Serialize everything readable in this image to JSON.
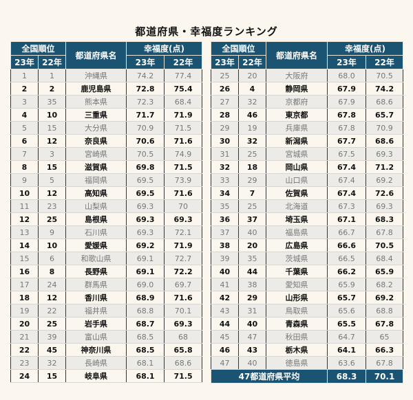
{
  "title": "都道府県・幸福度ランキング",
  "headers": {
    "rank": "全国順位",
    "prefecture": "都道府県名",
    "score": "幸福度(点)",
    "y23": "23年",
    "y22": "22年"
  },
  "rows": [
    [
      "1",
      "1",
      "沖縄県",
      "74.2",
      "77.4"
    ],
    [
      "2",
      "2",
      "鹿児島県",
      "72.8",
      "75.4"
    ],
    [
      "3",
      "35",
      "熊本県",
      "72.3",
      "68.4"
    ],
    [
      "4",
      "10",
      "三重県",
      "71.7",
      "71.9"
    ],
    [
      "5",
      "15",
      "大分県",
      "70.9",
      "71.5"
    ],
    [
      "6",
      "12",
      "奈良県",
      "70.6",
      "71.6"
    ],
    [
      "7",
      "3",
      "宮崎県",
      "70.5",
      "74.9"
    ],
    [
      "8",
      "15",
      "滋賀県",
      "69.8",
      "71.5"
    ],
    [
      "9",
      "5",
      "福岡県",
      "69.5",
      "73.9"
    ],
    [
      "10",
      "12",
      "高知県",
      "69.5",
      "71.6"
    ],
    [
      "11",
      "23",
      "山梨県",
      "69.3",
      "70"
    ],
    [
      "12",
      "25",
      "島根県",
      "69.3",
      "69.3"
    ],
    [
      "13",
      "9",
      "石川県",
      "69.3",
      "72.1"
    ],
    [
      "14",
      "10",
      "愛媛県",
      "69.2",
      "71.9"
    ],
    [
      "15",
      "6",
      "和歌山県",
      "69.1",
      "72.7"
    ],
    [
      "16",
      "8",
      "長野県",
      "69.1",
      "72.2"
    ],
    [
      "17",
      "24",
      "群馬県",
      "69.0",
      "69.7"
    ],
    [
      "18",
      "12",
      "香川県",
      "68.9",
      "71.6"
    ],
    [
      "19",
      "22",
      "福井県",
      "68.8",
      "70.1"
    ],
    [
      "20",
      "25",
      "岩手県",
      "68.7",
      "69.3"
    ],
    [
      "21",
      "39",
      "富山県",
      "68.5",
      "68"
    ],
    [
      "22",
      "45",
      "神奈川県",
      "68.5",
      "65.8"
    ],
    [
      "23",
      "32",
      "長崎県",
      "68.1",
      "68.6"
    ],
    [
      "24",
      "15",
      "岐阜県",
      "68.1",
      "71.5"
    ],
    [
      "25",
      "20",
      "大阪府",
      "68.0",
      "70.5"
    ],
    [
      "26",
      "4",
      "静岡県",
      "67.9",
      "74.2"
    ],
    [
      "27",
      "32",
      "京都府",
      "67.9",
      "68.6"
    ],
    [
      "28",
      "46",
      "東京都",
      "67.8",
      "65.7"
    ],
    [
      "29",
      "19",
      "兵庫県",
      "67.8",
      "70.9"
    ],
    [
      "30",
      "32",
      "新潟県",
      "67.7",
      "68.6"
    ],
    [
      "31",
      "25",
      "宮城県",
      "67.5",
      "69.3"
    ],
    [
      "32",
      "18",
      "岡山県",
      "67.4",
      "71.2"
    ],
    [
      "33",
      "29",
      "山口県",
      "67.4",
      "69.2"
    ],
    [
      "34",
      "7",
      "佐賀県",
      "67.4",
      "72.6"
    ],
    [
      "35",
      "25",
      "北海道",
      "67.3",
      "69.3"
    ],
    [
      "36",
      "37",
      "埼玉県",
      "67.1",
      "68.3"
    ],
    [
      "37",
      "40",
      "福島県",
      "66.7",
      "67.8"
    ],
    [
      "38",
      "20",
      "広島県",
      "66.6",
      "70.5"
    ],
    [
      "39",
      "35",
      "茨城県",
      "66.5",
      "68.4"
    ],
    [
      "40",
      "44",
      "千葉県",
      "66.2",
      "65.9"
    ],
    [
      "41",
      "38",
      "愛知県",
      "65.9",
      "68.2"
    ],
    [
      "42",
      "29",
      "山形県",
      "65.7",
      "69.2"
    ],
    [
      "43",
      "31",
      "鳥取県",
      "65.6",
      "68.8"
    ],
    [
      "44",
      "40",
      "青森県",
      "65.5",
      "67.8"
    ],
    [
      "45",
      "47",
      "秋田県",
      "64.7",
      "65"
    ],
    [
      "46",
      "43",
      "栃木県",
      "64.1",
      "66.3"
    ],
    [
      "47",
      "40",
      "徳島県",
      "63.6",
      "67.8"
    ]
  ],
  "average": {
    "label": "47都道府県平均",
    "y23": "68.3",
    "y22": "70.1"
  }
}
